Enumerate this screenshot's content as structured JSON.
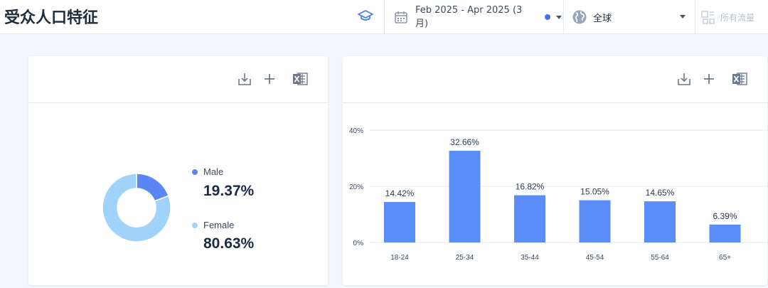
{
  "header": {
    "title": "受众人口特征",
    "date_range": "Feb 2025 - Apr 2025 (3 月)",
    "region": "全球",
    "traffic": "所有流量"
  },
  "colors": {
    "accent": "#5b8def",
    "male": "#5b86f5",
    "female": "#9fd3fb",
    "bar": "#5b8df8"
  },
  "gender_card": {
    "male_label": "Male",
    "male_value": "19.37%",
    "female_label": "Female",
    "female_value": "80.63%"
  },
  "chart_data": [
    {
      "type": "pie",
      "categories": [
        "Male",
        "Female"
      ],
      "values": [
        19.37,
        80.63
      ]
    },
    {
      "type": "bar",
      "categories": [
        "18-24",
        "25-34",
        "35-44",
        "45-54",
        "55-64",
        "65+"
      ],
      "values": [
        14.42,
        32.66,
        16.82,
        15.05,
        14.65,
        6.39
      ],
      "labels": [
        "14.42%",
        "32.66%",
        "16.82%",
        "15.05%",
        "14.65%",
        "6.39%"
      ],
      "yticks": [
        "0%",
        "20%",
        "40%"
      ],
      "ylim": [
        0,
        40
      ],
      "grid": true
    }
  ]
}
